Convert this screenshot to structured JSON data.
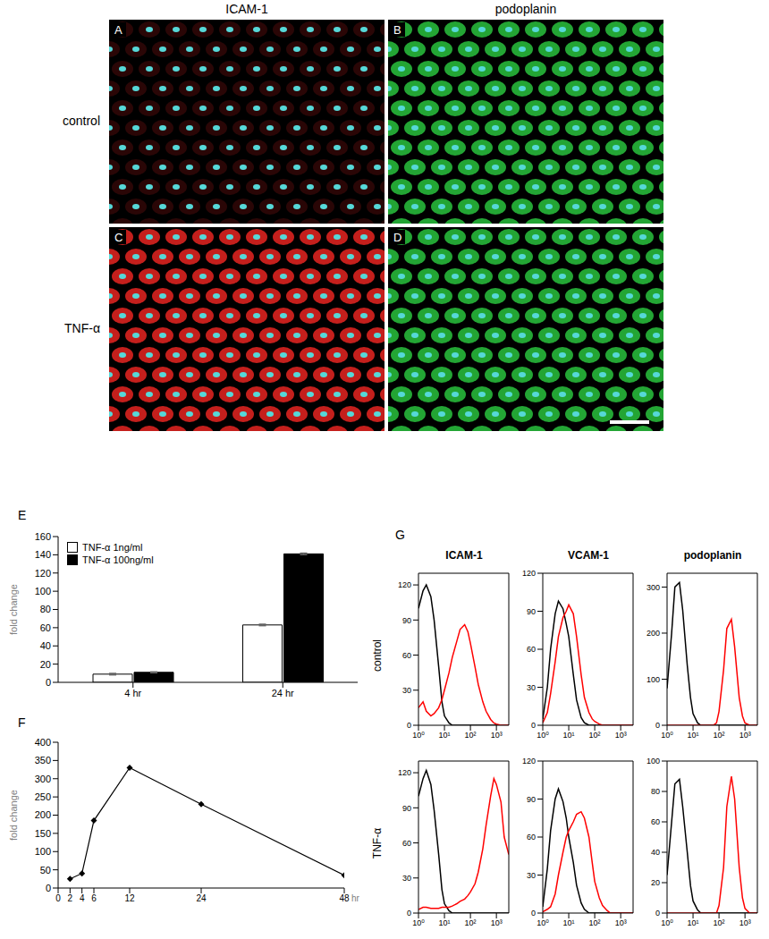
{
  "images": {
    "column_titles": [
      "ICAM-1",
      "podoplanin"
    ],
    "row_titles": [
      "control",
      "TNF-α"
    ],
    "panels": [
      {
        "label": "A",
        "color": "#2a0606"
      },
      {
        "label": "B",
        "color": "#23a534"
      },
      {
        "label": "C",
        "color": "#c41f1c"
      },
      {
        "label": "D",
        "color": "#23a534"
      }
    ]
  },
  "flow": {
    "label": "G",
    "column_titles": [
      "ICAM-1",
      "VCAM-1",
      "podoplanin"
    ],
    "row_titles": [
      "control",
      "TNF-α"
    ]
  },
  "chart_data": [
    {
      "type": "bar",
      "label": "E",
      "categories": [
        "4 hr",
        "24 hr"
      ],
      "ylabel": "fold change",
      "ylim": [
        0,
        160
      ],
      "yticks": [
        0,
        20,
        40,
        60,
        80,
        100,
        120,
        140,
        160
      ],
      "series": [
        {
          "name": "TNF-α 1ng/ml",
          "color": "#ffffff",
          "values": [
            9,
            63
          ],
          "errors": [
            0.8,
            0.8
          ]
        },
        {
          "name": "TNF-α 100ng/ml",
          "color": "#000000",
          "values": [
            11,
            141
          ],
          "errors": [
            0.5,
            0.8
          ]
        }
      ],
      "legend": "top-left",
      "grid": false
    },
    {
      "type": "line",
      "label": "F",
      "x": [
        2,
        4,
        6,
        12,
        24,
        48
      ],
      "values": [
        25,
        40,
        185,
        330,
        230,
        35
      ],
      "xlim": [
        0,
        48
      ],
      "xticks": [
        0,
        2,
        4,
        6,
        12,
        24,
        48
      ],
      "xlabel": "hr",
      "ylabel": "fold change",
      "ylim": [
        0,
        400
      ],
      "yticks": [
        0,
        50,
        100,
        150,
        200,
        250,
        300,
        350,
        400
      ],
      "color": "#000000",
      "marker": "diamond",
      "grid": false
    },
    {
      "type": "line",
      "log": "x",
      "grid": false,
      "xlim": [
        1,
        3000
      ],
      "xticks": [
        {
          "value": 1,
          "label": "10⁰"
        },
        {
          "value": 10,
          "label": "10¹"
        },
        {
          "value": 100,
          "label": "10²"
        },
        {
          "value": 1000,
          "label": "10³"
        }
      ],
      "ylim": [
        0,
        130
      ],
      "yticks": [
        0,
        30,
        60,
        90,
        120
      ],
      "x": [
        1,
        1.5,
        2,
        3,
        4,
        6,
        8,
        10,
        15,
        20,
        30,
        40,
        60,
        80,
        100,
        150,
        200,
        300,
        400,
        600,
        800,
        1000,
        1500,
        2000,
        3000
      ],
      "series": [
        {
          "color": "#000000",
          "values": [
            100,
            115,
            120,
            110,
            90,
            50,
            20,
            8,
            2,
            0,
            0,
            0,
            0,
            0,
            0,
            0,
            0,
            0,
            0,
            0,
            0,
            0,
            0,
            0,
            0
          ]
        },
        {
          "color": "#ff0000",
          "values": [
            15,
            20,
            12,
            8,
            10,
            15,
            22,
            30,
            45,
            58,
            72,
            82,
            86,
            80,
            70,
            50,
            35,
            20,
            12,
            5,
            2,
            1,
            0,
            0,
            0
          ]
        }
      ]
    },
    {
      "type": "line",
      "log": "x",
      "grid": false,
      "xlim": [
        1,
        3000
      ],
      "xticks": [
        {
          "value": 1,
          "label": "10⁰"
        },
        {
          "value": 10,
          "label": "10¹"
        },
        {
          "value": 100,
          "label": "10²"
        },
        {
          "value": 1000,
          "label": "10³"
        }
      ],
      "ylim": [
        0,
        120
      ],
      "yticks": [
        0,
        30,
        60,
        90,
        120
      ],
      "x": [
        1,
        1.5,
        2,
        3,
        4,
        6,
        8,
        10,
        15,
        20,
        30,
        40,
        60,
        80,
        100,
        150,
        200,
        300,
        400,
        600,
        800,
        1000,
        1500,
        2000,
        3000
      ],
      "series": [
        {
          "color": "#000000",
          "values": [
            5,
            30,
            60,
            88,
            98,
            92,
            80,
            70,
            40,
            20,
            6,
            2,
            0,
            0,
            0,
            0,
            0,
            0,
            0,
            0,
            0,
            0,
            0,
            0,
            0
          ]
        },
        {
          "color": "#ff0000",
          "values": [
            2,
            10,
            25,
            50,
            70,
            85,
            90,
            95,
            88,
            70,
            40,
            22,
            10,
            5,
            3,
            1,
            0,
            0,
            0,
            0,
            0,
            0,
            0,
            0,
            0
          ]
        }
      ]
    },
    {
      "type": "line",
      "log": "x",
      "grid": false,
      "xlim": [
        1,
        3000
      ],
      "xticks": [
        {
          "value": 1,
          "label": "10⁰"
        },
        {
          "value": 10,
          "label": "10¹"
        },
        {
          "value": 100,
          "label": "10²"
        },
        {
          "value": 1000,
          "label": "10³"
        }
      ],
      "ylim": [
        0,
        330
      ],
      "yticks": [
        0,
        100,
        200,
        300
      ],
      "x": [
        1,
        1.5,
        2,
        3,
        4,
        6,
        8,
        10,
        15,
        20,
        30,
        40,
        60,
        80,
        100,
        150,
        200,
        300,
        400,
        600,
        800,
        1000,
        1500,
        2000,
        3000
      ],
      "series": [
        {
          "color": "#000000",
          "values": [
            80,
            200,
            300,
            310,
            250,
            130,
            60,
            25,
            5,
            0,
            0,
            0,
            0,
            0,
            0,
            0,
            0,
            0,
            0,
            0,
            0,
            0,
            0,
            0,
            0
          ]
        },
        {
          "color": "#ff0000",
          "values": [
            0,
            0,
            0,
            0,
            0,
            0,
            0,
            0,
            0,
            0,
            0,
            0,
            0,
            5,
            30,
            120,
            210,
            230,
            170,
            60,
            20,
            5,
            0,
            0,
            0
          ]
        }
      ]
    },
    {
      "type": "line",
      "log": "x",
      "grid": false,
      "xlim": [
        1,
        3000
      ],
      "xticks": [
        {
          "value": 1,
          "label": "10⁰"
        },
        {
          "value": 10,
          "label": "10¹"
        },
        {
          "value": 100,
          "label": "10²"
        },
        {
          "value": 1000,
          "label": "10³"
        }
      ],
      "ylim": [
        0,
        130
      ],
      "yticks": [
        0,
        30,
        60,
        90,
        120
      ],
      "x": [
        1,
        1.5,
        2,
        3,
        4,
        6,
        8,
        10,
        15,
        20,
        30,
        40,
        60,
        80,
        100,
        150,
        200,
        300,
        400,
        600,
        800,
        1000,
        1500,
        2000,
        3000
      ],
      "series": [
        {
          "color": "#000000",
          "values": [
            100,
            115,
            122,
            110,
            88,
            50,
            20,
            8,
            2,
            0,
            0,
            0,
            0,
            0,
            0,
            0,
            0,
            0,
            0,
            0,
            0,
            0,
            0,
            0,
            0
          ]
        },
        {
          "color": "#ff0000",
          "values": [
            3,
            5,
            5,
            4,
            4,
            4,
            5,
            5,
            5,
            6,
            8,
            10,
            12,
            15,
            18,
            25,
            35,
            55,
            75,
            100,
            115,
            110,
            95,
            65,
            50
          ]
        }
      ]
    },
    {
      "type": "line",
      "log": "x",
      "grid": false,
      "xlim": [
        1,
        3000
      ],
      "xticks": [
        {
          "value": 1,
          "label": "10⁰"
        },
        {
          "value": 10,
          "label": "10¹"
        },
        {
          "value": 100,
          "label": "10²"
        },
        {
          "value": 1000,
          "label": "10³"
        }
      ],
      "ylim": [
        0,
        120
      ],
      "yticks": [
        0,
        30,
        60,
        90,
        120
      ],
      "x": [
        1,
        1.5,
        2,
        3,
        4,
        6,
        8,
        10,
        15,
        20,
        30,
        40,
        60,
        80,
        100,
        150,
        200,
        300,
        400,
        600,
        800,
        1000,
        1500,
        2000,
        3000
      ],
      "series": [
        {
          "color": "#000000",
          "values": [
            5,
            35,
            65,
            90,
            98,
            88,
            75,
            60,
            40,
            22,
            8,
            3,
            0,
            0,
            0,
            0,
            0,
            0,
            0,
            0,
            0,
            0,
            0,
            0,
            0
          ]
        },
        {
          "color": "#ff0000",
          "values": [
            1,
            3,
            5,
            15,
            30,
            48,
            60,
            65,
            72,
            78,
            80,
            75,
            60,
            40,
            25,
            12,
            6,
            2,
            0,
            0,
            0,
            0,
            0,
            0,
            0
          ]
        }
      ]
    },
    {
      "type": "line",
      "log": "x",
      "grid": false,
      "xlim": [
        1,
        3000
      ],
      "xticks": [
        {
          "value": 1,
          "label": "10⁰"
        },
        {
          "value": 10,
          "label": "10¹"
        },
        {
          "value": 100,
          "label": "10²"
        },
        {
          "value": 1000,
          "label": "10³"
        }
      ],
      "ylim": [
        0,
        100
      ],
      "yticks": [
        0,
        20,
        40,
        60,
        80,
        100
      ],
      "x": [
        1,
        1.5,
        2,
        3,
        4,
        6,
        8,
        10,
        15,
        20,
        30,
        40,
        60,
        80,
        100,
        150,
        200,
        300,
        400,
        600,
        800,
        1000,
        1500,
        2000,
        3000
      ],
      "series": [
        {
          "color": "#000000",
          "values": [
            25,
            60,
            85,
            88,
            70,
            40,
            18,
            8,
            2,
            0,
            0,
            0,
            0,
            0,
            0,
            0,
            0,
            0,
            0,
            0,
            0,
            0,
            0,
            0,
            0
          ]
        },
        {
          "color": "#ff0000",
          "values": [
            0,
            0,
            0,
            0,
            0,
            0,
            0,
            0,
            0,
            0,
            0,
            0,
            0,
            0,
            5,
            30,
            70,
            90,
            75,
            30,
            10,
            3,
            0,
            0,
            0
          ]
        }
      ]
    }
  ]
}
